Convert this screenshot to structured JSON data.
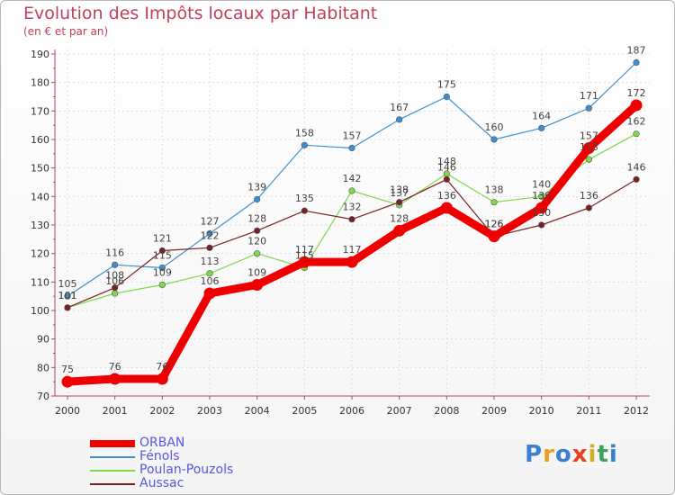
{
  "chart_data": {
    "type": "line",
    "title": "Evolution des Impôts locaux par Habitant",
    "subtitle": "(en € et par an)",
    "xlabel": "",
    "ylabel": "",
    "x": [
      "2000",
      "2001",
      "2002",
      "2003",
      "2004",
      "2005",
      "2006",
      "2007",
      "2008",
      "2009",
      "2010",
      "2011",
      "2012"
    ],
    "ylim": [
      70,
      190
    ],
    "yticks": [
      "70",
      "80",
      "90",
      "100",
      "110",
      "120",
      "130",
      "140",
      "150",
      "160",
      "170",
      "180",
      "190"
    ],
    "grid": true,
    "series": [
      {
        "name": "ORBAN",
        "color": "#ee0000",
        "emphasis": true,
        "values": [
          75,
          76,
          76,
          106,
          109,
          117,
          117,
          128,
          136,
          126,
          136,
          157,
          172
        ]
      },
      {
        "name": "Fénols",
        "color": "#3f8fd0",
        "values": [
          105,
          116,
          115,
          127,
          139,
          158,
          157,
          167,
          175,
          160,
          164,
          171,
          187
        ]
      },
      {
        "name": "Poulan-Pouzols",
        "color": "#7fd94a",
        "values": [
          101,
          106,
          109,
          113,
          120,
          115,
          142,
          137,
          148,
          138,
          140,
          153,
          162
        ]
      },
      {
        "name": "Aussac",
        "color": "#7a2020",
        "values": [
          101,
          108,
          121,
          122,
          128,
          135,
          132,
          138,
          146,
          126,
          130,
          136,
          146
        ]
      }
    ],
    "labels_by_series": [
      [
        "75",
        "76",
        "76",
        "106",
        "109",
        "117",
        "117",
        "128",
        "136",
        "126",
        "136",
        "157",
        "172"
      ],
      [
        "105",
        "116",
        "115",
        "127",
        "139",
        "158",
        "157",
        "167",
        "175",
        "160",
        "164",
        "171",
        "187"
      ],
      [
        "101",
        "106",
        "109",
        "113",
        "120",
        "115",
        "142",
        "137",
        "148",
        "138",
        "140",
        "153",
        "162"
      ],
      [
        "101",
        "108",
        "121",
        "122",
        "128",
        "135",
        "132",
        "138",
        "146",
        "126",
        "130",
        "136",
        "146"
      ]
    ]
  },
  "logo": {
    "letters": [
      "P",
      "r",
      "o",
      "x",
      "i",
      "t",
      "i"
    ],
    "colors": [
      "#3a7fd0",
      "#e8a020",
      "#3a7fd0",
      "#e84020",
      "#d0b020",
      "#40a060",
      "#3a7fd0"
    ]
  }
}
